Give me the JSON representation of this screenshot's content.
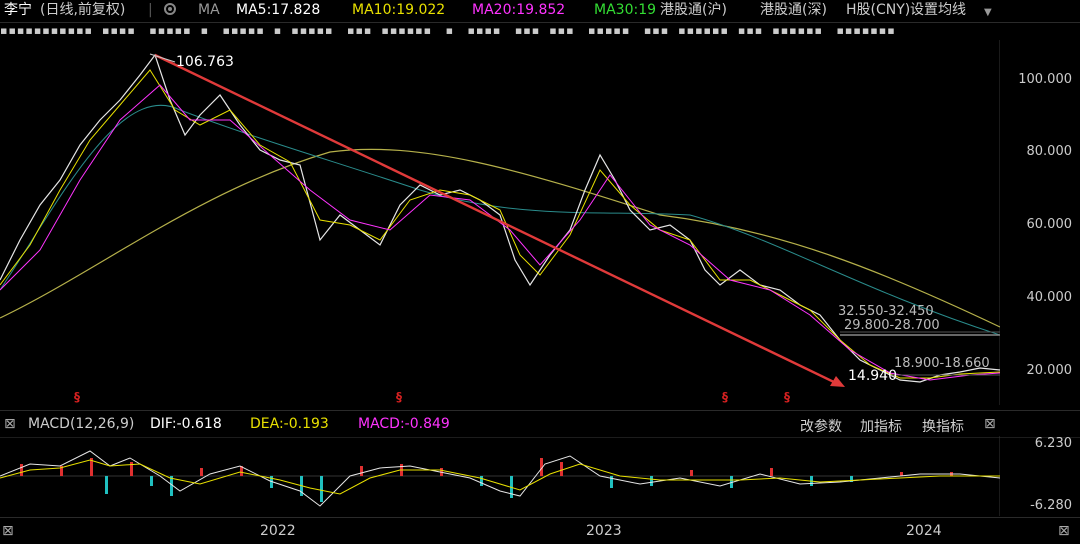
{
  "header": {
    "stock_name": "李宁",
    "mode": "(日线,前复权)",
    "ma_label": "MA",
    "ma5": "MA5:17.828",
    "ma10": "MA10:19.022",
    "ma20": "MA20:19.852",
    "ma30": "MA30:19",
    "link_hk_sh": "港股通(沪)",
    "link_hk_sz": "港股通(深)",
    "h_share": "H股(CNY)",
    "set_ma": "设置均线"
  },
  "colors": {
    "ma5": "#ffffff",
    "ma10": "#e8e000",
    "ma20": "#ff33ff",
    "ma30": "#33dd33",
    "up": "#e03030",
    "down": "#20c0c0",
    "trend": "#e03a3a"
  },
  "price_axis": {
    "ticks": [
      "100.000",
      "80.000",
      "60.000",
      "40.000",
      "20.000"
    ]
  },
  "annotations": {
    "high": "106.763",
    "low": "14.940",
    "range1": "32.550-32.450",
    "range2": "29.800-28.700",
    "range3": "18.900-18.660"
  },
  "macd": {
    "label": "MACD(12,26,9)",
    "dif": "DIF:-0.618",
    "dea": "DEA:-0.193",
    "macd": "MACD:-0.849",
    "btn_params": "改参数",
    "btn_add": "加指标",
    "btn_switch": "换指标",
    "axis_top": "6.230",
    "axis_bottom": "-6.280"
  },
  "time_axis": {
    "labels": [
      "2022",
      "2023",
      "2024"
    ]
  },
  "chart_data": {
    "type": "line",
    "series": [
      {
        "values": [
          45,
          52,
          58,
          70,
          90,
          105,
          95,
          88,
          80,
          78,
          70,
          55,
          62,
          58,
          65,
          72,
          70,
          60,
          45,
          55,
          70,
          80,
          65,
          60,
          55,
          48,
          42,
          40,
          35,
          30,
          22,
          18,
          17,
          18
        ]
      }
    ]
  }
}
